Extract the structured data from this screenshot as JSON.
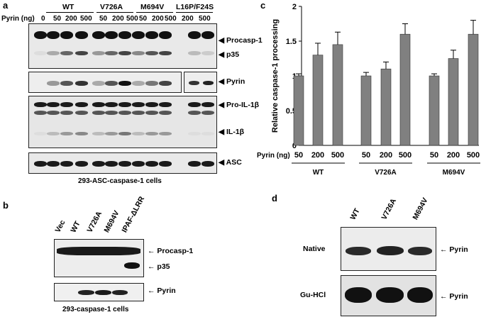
{
  "panel_a": {
    "letter": "a",
    "row_label": "Pyrin (ng)",
    "groups": [
      "WT",
      "V726A",
      "M694V",
      "L16P/F24S"
    ],
    "doses": [
      "0",
      "50",
      "200",
      "500",
      "50",
      "200",
      "500",
      "50",
      "200",
      "500",
      "200",
      "500"
    ],
    "blot_labels": [
      "Procasp-1",
      "p35",
      "Pyrin",
      "Pro-IL-1β",
      "IL-1β",
      "ASC"
    ],
    "caption": "293-ASC-caspase-1 cells"
  },
  "panel_b": {
    "letter": "b",
    "lanes": [
      "Vec",
      "WT",
      "V726A",
      "M694V",
      "IPAF-ΔLRR"
    ],
    "blot_labels": [
      "Procasp-1",
      "p35",
      "Pyrin"
    ],
    "caption": "293-caspase-1 cells"
  },
  "panel_c": {
    "letter": "c"
  },
  "panel_d": {
    "letter": "d",
    "lanes": [
      "WT",
      "V726A",
      "M694V"
    ],
    "row_labels": [
      "Native",
      "Gu-HCl"
    ],
    "blot_labels": [
      "Pyrin",
      "Pyrin"
    ]
  },
  "chart_data": {
    "type": "bar",
    "ylabel": "Relative caspase-1 processing",
    "ylim": [
      0,
      2
    ],
    "yticks": [
      "0",
      "0.5",
      "1",
      "1.5",
      "2"
    ],
    "xrow_label": "Pyrin (ng)",
    "categories": [
      "50",
      "200",
      "500",
      "50",
      "200",
      "500",
      "50",
      "200",
      "500"
    ],
    "groups": [
      "WT",
      "V726A",
      "M694V"
    ],
    "values": [
      1.0,
      1.3,
      1.45,
      1.0,
      1.1,
      1.6,
      1.0,
      1.25,
      1.6
    ],
    "errors": [
      0.03,
      0.17,
      0.18,
      0.05,
      0.1,
      0.15,
      0.03,
      0.12,
      0.2
    ],
    "bar_color": "#808080",
    "grid": false
  }
}
